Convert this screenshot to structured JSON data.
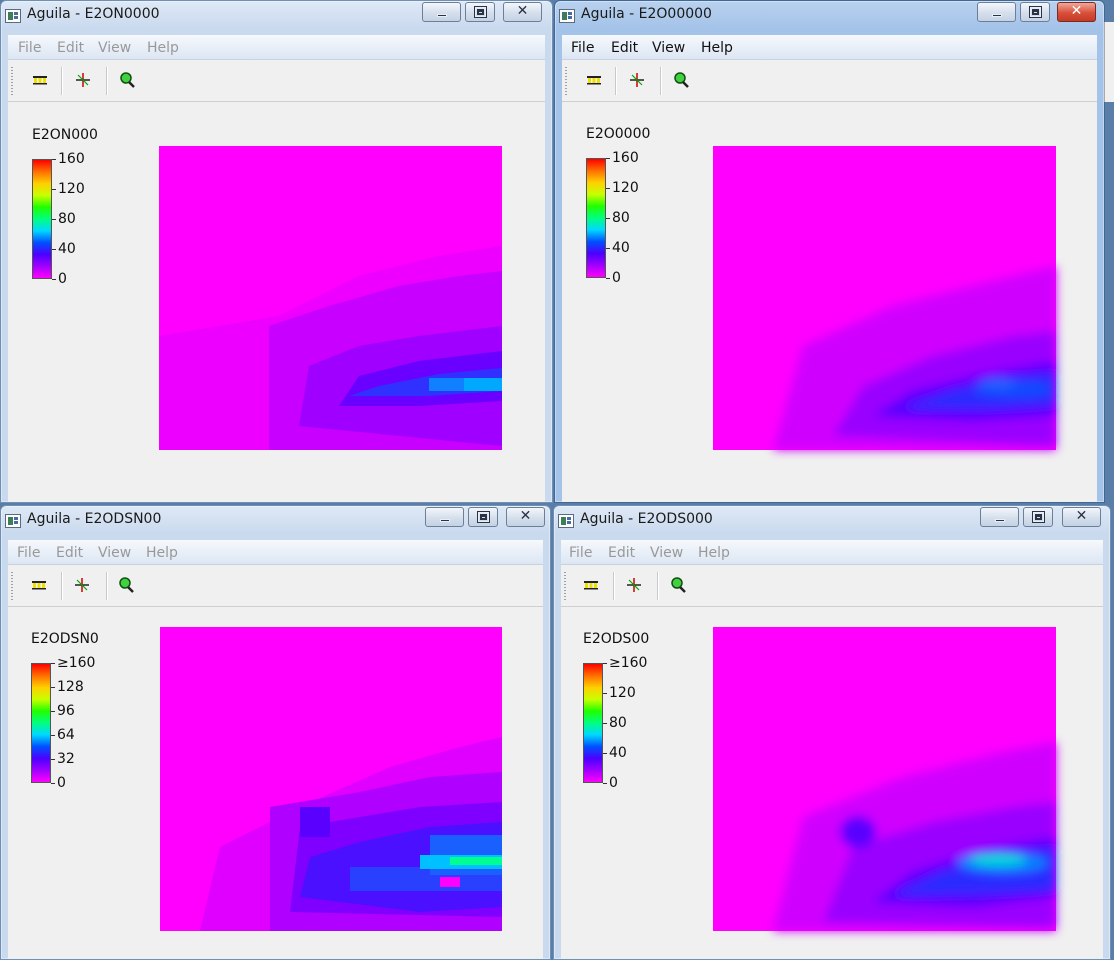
{
  "windows": [
    {
      "title": "Aguila - E2ON0000",
      "menu": [
        "File",
        "Edit",
        "View",
        "Help"
      ],
      "legend_title": "E2ON000",
      "ticks": [
        "160",
        "120",
        "80",
        "40",
        "0"
      ],
      "state": "inactive"
    },
    {
      "title": "Aguila - E2O00000",
      "menu": [
        "File",
        "Edit",
        "View",
        "Help"
      ],
      "legend_title": "E2O0000",
      "ticks": [
        "160",
        "120",
        "80",
        "40",
        "0"
      ],
      "state": "active"
    },
    {
      "title": "Aguila - E2ODSN00",
      "menu": [
        "File",
        "Edit",
        "View",
        "Help"
      ],
      "legend_title": "E2ODSN0",
      "ticks": [
        "≥160",
        "128",
        "96",
        "64",
        "32",
        "0"
      ],
      "state": "inactive"
    },
    {
      "title": "Aguila - E2ODS000",
      "menu": [
        "File",
        "Edit",
        "View",
        "Help"
      ],
      "legend_title": "E2ODS00",
      "ticks": [
        "≥160",
        "120",
        "80",
        "40",
        "0"
      ],
      "state": "inactive"
    }
  ],
  "toolbar": {
    "icons": [
      "legend-bars-icon",
      "crosshair-icon",
      "zoom-icon"
    ]
  },
  "colors": {
    "map_background": "#ff00ff",
    "low": "#a000ff",
    "mid": "#2020ff",
    "high": "#00c8ff",
    "peak": "#00ff90"
  }
}
